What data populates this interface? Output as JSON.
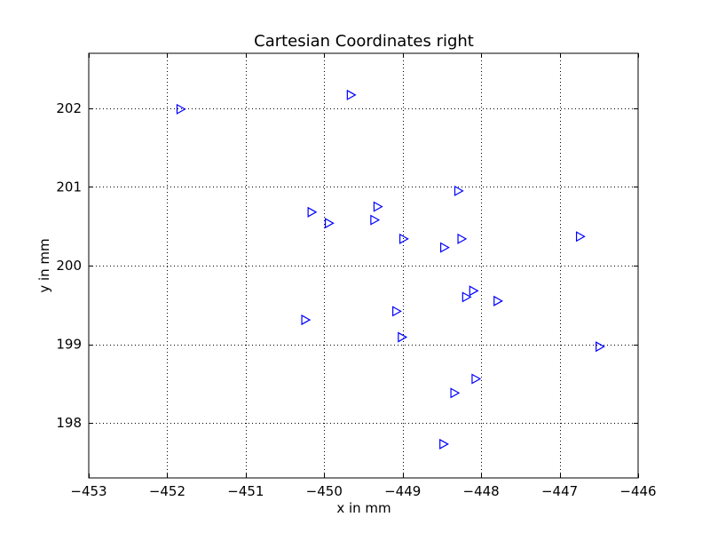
{
  "chart_data": {
    "type": "scatter",
    "title": "Cartesian Coordinates right",
    "xlabel": "x in mm",
    "ylabel": "y in mm",
    "xlim": [
      -453,
      -446
    ],
    "ylim": [
      197.3,
      202.7
    ],
    "xticks": [
      -453,
      -452,
      -451,
      -450,
      -449,
      -448,
      -447,
      -446
    ],
    "xtick_labels": [
      "−453",
      "−452",
      "−451",
      "−450",
      "−449",
      "−448",
      "−447",
      "−446"
    ],
    "yticks": [
      198,
      199,
      200,
      201,
      202
    ],
    "ytick_labels": [
      "198",
      "199",
      "200",
      "201",
      "202"
    ],
    "grid": true,
    "marker": "triangle-right",
    "marker_color": "#0000ff",
    "points": [
      {
        "x": -451.83,
        "y": 201.99
      },
      {
        "x": -449.66,
        "y": 202.17
      },
      {
        "x": -448.29,
        "y": 200.95
      },
      {
        "x": -450.16,
        "y": 200.68
      },
      {
        "x": -449.32,
        "y": 200.75
      },
      {
        "x": -449.36,
        "y": 200.58
      },
      {
        "x": -449.94,
        "y": 200.54
      },
      {
        "x": -448.99,
        "y": 200.34
      },
      {
        "x": -448.25,
        "y": 200.34
      },
      {
        "x": -448.47,
        "y": 200.23
      },
      {
        "x": -446.74,
        "y": 200.37
      },
      {
        "x": -448.1,
        "y": 199.68
      },
      {
        "x": -448.19,
        "y": 199.6
      },
      {
        "x": -447.79,
        "y": 199.55
      },
      {
        "x": -449.08,
        "y": 199.42
      },
      {
        "x": -450.24,
        "y": 199.31
      },
      {
        "x": -449.01,
        "y": 199.09
      },
      {
        "x": -446.49,
        "y": 198.97
      },
      {
        "x": -448.07,
        "y": 198.56
      },
      {
        "x": -448.34,
        "y": 198.38
      },
      {
        "x": -448.48,
        "y": 197.73
      }
    ]
  }
}
